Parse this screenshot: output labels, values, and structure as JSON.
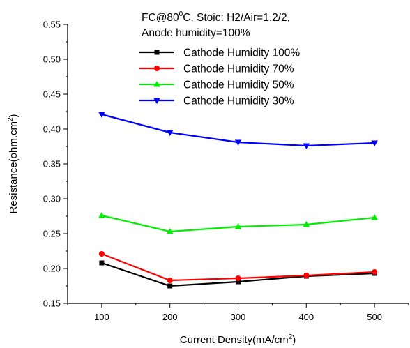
{
  "chart_data": {
    "type": "line",
    "annotation": {
      "line1_pre": "FC@80",
      "line1_sup": "0",
      "line1_post": "C, Stoic: H2/Air=1.2/2,",
      "line2": "Anode humidity=100%"
    },
    "xlabel": {
      "text": "Current Density(mA/cm",
      "sup": "2",
      "close": ")"
    },
    "ylabel": {
      "text": "Resistance(ohm.cm",
      "sup": "2",
      "close": ")"
    },
    "xlim": [
      50,
      550
    ],
    "ylim": [
      0.15,
      0.55
    ],
    "x_ticks": [
      100,
      200,
      300,
      400,
      500
    ],
    "y_ticks": [
      "0.15",
      "0.20",
      "0.25",
      "0.30",
      "0.35",
      "0.40",
      "0.45",
      "0.50",
      "0.55"
    ],
    "legend_position": "top-right",
    "grid": false,
    "x": [
      100,
      200,
      300,
      400,
      500
    ],
    "series": [
      {
        "name": "Cathode Humidity 100%",
        "color": "#000000",
        "marker": "square",
        "values": [
          0.208,
          0.175,
          0.181,
          0.189,
          0.193
        ]
      },
      {
        "name": "Cathode Humidity 70%",
        "color": "#ff0000",
        "marker": "circle",
        "values": [
          0.221,
          0.183,
          0.186,
          0.19,
          0.195
        ]
      },
      {
        "name": "Cathode Humidity 50%",
        "color": "#00ee00",
        "marker": "triangle-up",
        "values": [
          0.276,
          0.253,
          0.26,
          0.263,
          0.273
        ]
      },
      {
        "name": "Cathode Humidity 30%",
        "color": "#0000ff",
        "marker": "triangle-down",
        "values": [
          0.421,
          0.395,
          0.381,
          0.376,
          0.38
        ]
      }
    ]
  }
}
